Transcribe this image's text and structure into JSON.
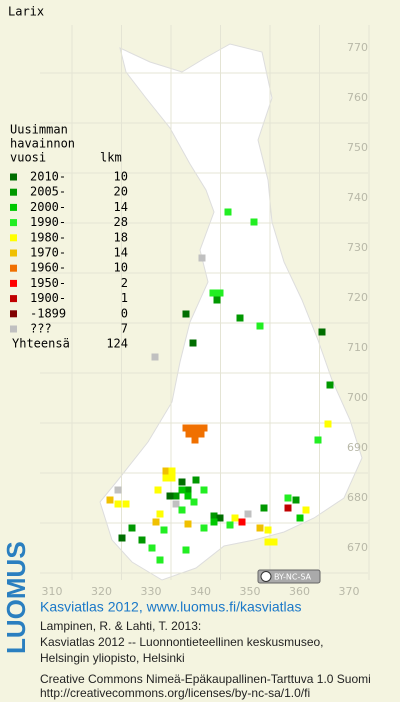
{
  "title": "Larix",
  "legend": {
    "heading": [
      "Uusimman",
      "havainnon",
      "vuosi"
    ],
    "count_heading": "lkm",
    "rows": [
      {
        "label": "2010-",
        "count": "10",
        "color": "#006e00"
      },
      {
        "label": "2005-",
        "count": "20",
        "color": "#009800"
      },
      {
        "label": "2000-",
        "count": "14",
        "color": "#00c800"
      },
      {
        "label": "1990-",
        "count": "28",
        "color": "#22ee22"
      },
      {
        "label": "1980-",
        "count": "18",
        "color": "#ffff00"
      },
      {
        "label": "1970-",
        "count": "14",
        "color": "#f0c000"
      },
      {
        "label": "1960-",
        "count": "10",
        "color": "#f07000"
      },
      {
        "label": "1950-",
        "count": "2",
        "color": "#ff0000"
      },
      {
        "label": "1900-",
        "count": "1",
        "color": "#c00000"
      },
      {
        "label": "-1899",
        "count": "0",
        "color": "#800000"
      },
      {
        "label": "???",
        "count": "7",
        "color": "#c0c0c0"
      }
    ],
    "total_label": "Yhteensä",
    "total": "124"
  },
  "y_grid_labels": [
    "770",
    "760",
    "750",
    "740",
    "730",
    "720",
    "710",
    "700",
    "690",
    "680",
    "670"
  ],
  "x_grid_labels": [
    "310",
    "320",
    "330",
    "340",
    "350",
    "360",
    "370"
  ],
  "license_badge": "BY-NC-SA",
  "footer": {
    "logo": "LUOMUS",
    "link": "Kasviatlas 2012, www.luomus.fi/kasviatlas",
    "citation": [
      "Lampinen, R. & Lahti, T. 2013:",
      "Kasviatlas 2012 -- Luonnontieteellinen keskusmuseo,",
      "Helsingin yliopisto, Helsinki"
    ],
    "license": [
      "Creative Commons Nimeä-Epäkaupallinen-Tarttuva 1.0 Suomi",
      "http://creativecommons.org/licenses/by-nc-sa/1.0/fi"
    ]
  }
}
